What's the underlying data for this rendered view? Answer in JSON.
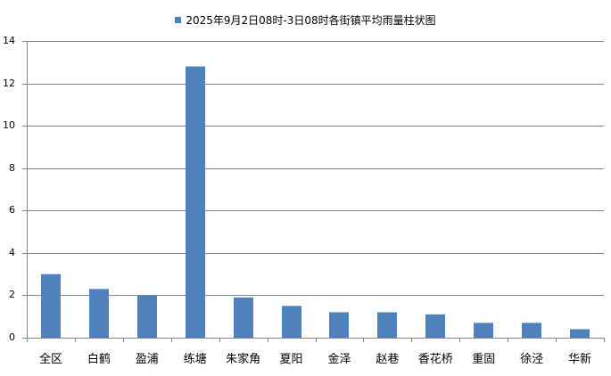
{
  "chart_data": {
    "type": "bar",
    "title": "2025年9月2日08时-3日08时各街镇平均雨量柱状图",
    "legend": [
      "2025年9月2日08时-3日08时各街镇平均雨量柱状图"
    ],
    "legend_position": "top",
    "categories": [
      "全区",
      "白鹤",
      "盈浦",
      "练塘",
      "朱家角",
      "夏阳",
      "金泽",
      "赵巷",
      "香花桥",
      "重固",
      "徐泾",
      "华新"
    ],
    "series": [
      {
        "name": "2025年9月2日08时-3日08时各街镇平均雨量柱状图",
        "values": [
          3.0,
          2.3,
          2.0,
          12.8,
          1.9,
          1.5,
          1.2,
          1.2,
          1.1,
          0.7,
          0.7,
          0.4
        ],
        "color": "#4f81bd"
      }
    ],
    "xlabel": "",
    "ylabel": "",
    "ylim": [
      0,
      14
    ],
    "yticks": [
      0,
      2,
      4,
      6,
      8,
      10,
      12,
      14
    ],
    "grid": true
  }
}
